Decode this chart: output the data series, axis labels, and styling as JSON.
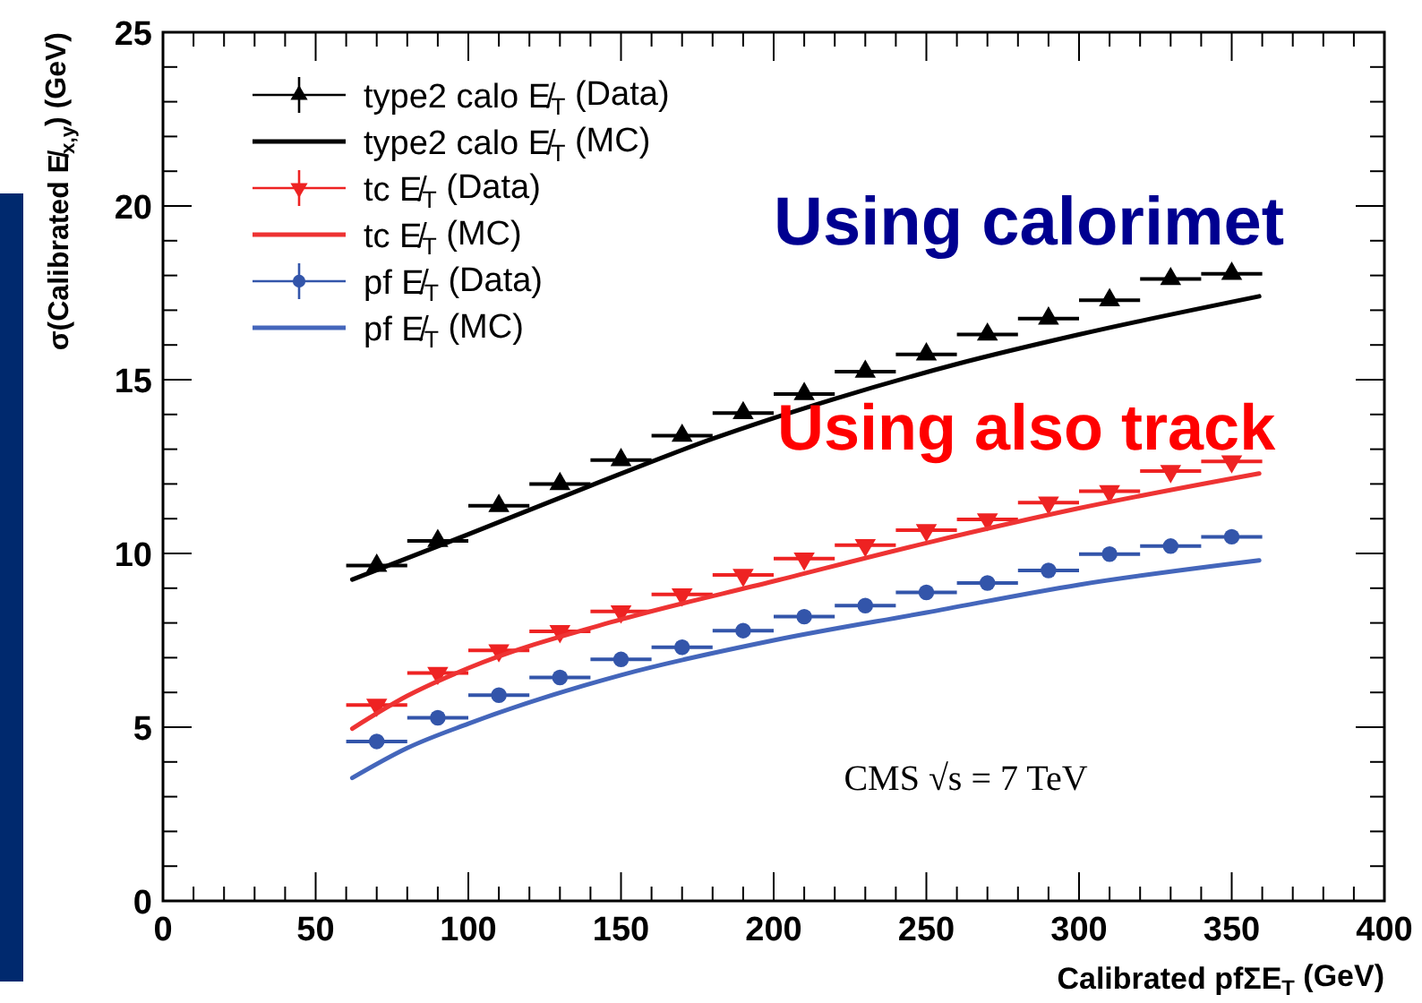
{
  "chart_data": {
    "type": "scatter",
    "xlabel": "Calibrated pfΣE$_{T}$ (GeV)",
    "ylabel": "σ(Calibrated E̸$_{x,y}$) (GeV)",
    "xlim": [
      0,
      400
    ],
    "ylim": [
      0,
      25
    ],
    "xticks": [
      0,
      {
        "value": 10,
        "label": null
      },
      {
        "value": 20,
        "label": null
      },
      {
        "value": 30,
        "label": null
      },
      {
        "value": 40,
        "label": null
      },
      50,
      {
        "value": 60,
        "label": null
      },
      {
        "value": 70,
        "label": null
      },
      {
        "value": 80,
        "label": null
      },
      {
        "value": 90,
        "label": null
      },
      100,
      {
        "value": 110,
        "label": null
      },
      {
        "value": 120,
        "label": null
      },
      {
        "value": 130,
        "label": null
      },
      {
        "value": 140,
        "label": null
      },
      150,
      {
        "value": 160,
        "label": null
      },
      {
        "value": 170,
        "label": null
      },
      {
        "value": 180,
        "label": null
      },
      {
        "value": 190,
        "label": null
      },
      200,
      {
        "value": 210,
        "label": null
      },
      {
        "value": 220,
        "label": null
      },
      {
        "value": 230,
        "label": null
      },
      {
        "value": 240,
        "label": null
      },
      250,
      {
        "value": 260,
        "label": null
      },
      {
        "value": 270,
        "label": null
      },
      {
        "value": 280,
        "label": null
      },
      {
        "value": 290,
        "label": null
      },
      300,
      {
        "value": 310,
        "label": null
      },
      {
        "value": 320,
        "label": null
      },
      {
        "value": 330,
        "label": null
      },
      {
        "value": 340,
        "label": null
      },
      350,
      {
        "value": 360,
        "label": null
      },
      {
        "value": 370,
        "label": null
      },
      {
        "value": 380,
        "label": null
      },
      {
        "value": 390,
        "label": null
      },
      400
    ],
    "yticks": [
      0,
      {
        "value": 1,
        "label": null
      },
      {
        "value": 2,
        "label": null
      },
      {
        "value": 3,
        "label": null
      },
      {
        "value": 4,
        "label": null
      },
      5,
      {
        "value": 6,
        "label": null
      },
      {
        "value": 7,
        "label": null
      },
      {
        "value": 8,
        "label": null
      },
      {
        "value": 9,
        "label": null
      },
      10,
      {
        "value": 11,
        "label": null
      },
      {
        "value": 12,
        "label": null
      },
      {
        "value": 13,
        "label": null
      },
      {
        "value": 14,
        "label": null
      },
      15,
      {
        "value": 16,
        "label": null
      },
      {
        "value": 17,
        "label": null
      },
      {
        "value": 18,
        "label": null
      },
      {
        "value": 19,
        "label": null
      },
      20,
      {
        "value": 21,
        "label": null
      },
      {
        "value": 22,
        "label": null
      },
      {
        "value": 23,
        "label": null
      },
      {
        "value": 24,
        "label": null
      },
      25
    ],
    "legend": "top left",
    "grid": false,
    "x": [
      70,
      90,
      110,
      130,
      150,
      170,
      190,
      210,
      230,
      250,
      270,
      290,
      310,
      330,
      350
    ],
    "series": [
      {
        "name": "type2 calo E̸$_{T}$ (Data)",
        "marker": "triangle",
        "color": "#000000",
        "values": [
          9.65,
          10.36,
          11.37,
          12.0,
          12.69,
          13.39,
          14.04,
          14.59,
          15.23,
          15.73,
          16.3,
          16.76,
          17.29,
          17.9,
          18.05
        ],
        "xerrors": [
          10,
          10,
          10,
          10,
          10,
          10,
          10,
          10,
          10,
          10,
          10,
          10,
          10,
          10,
          10
        ]
      },
      {
        "name": "type2 calo E̸$_{T}$ (MC)",
        "type": "line",
        "marker": "none",
        "color": "#000000",
        "x": [
          62,
          100,
          140,
          180,
          220,
          260,
          300,
          359
        ],
        "values": [
          9.25,
          10.55,
          11.95,
          13.3,
          14.45,
          15.45,
          16.3,
          17.4
        ]
      },
      {
        "name": "tc E̸$_{T}$ (Data)",
        "marker": "triangle-down",
        "color": "#ee2222",
        "values": [
          5.64,
          6.56,
          7.21,
          7.76,
          8.33,
          8.82,
          9.38,
          9.85,
          10.24,
          10.67,
          10.98,
          11.46,
          11.79,
          12.37,
          12.65
        ],
        "xerrors": [
          10,
          10,
          10,
          10,
          10,
          10,
          10,
          10,
          10,
          10,
          10,
          10,
          10,
          10,
          10
        ]
      },
      {
        "name": "tc E̸$_{T}$ (MC)",
        "type": "line",
        "marker": "none",
        "color": "#ee3333",
        "x": [
          62,
          80,
          100,
          150,
          200,
          250,
          300,
          359
        ],
        "values": [
          4.96,
          5.9,
          6.7,
          8.1,
          9.2,
          10.3,
          11.3,
          12.3
        ]
      },
      {
        "name": "pf E̸$_{T}$ (Data)",
        "marker": "circle",
        "color": "#3355aa",
        "values": [
          4.59,
          5.27,
          5.92,
          6.43,
          6.95,
          7.3,
          7.78,
          8.18,
          8.5,
          8.88,
          9.15,
          9.51,
          9.98,
          10.21,
          10.48
        ],
        "xerrors": [
          10,
          10,
          10,
          10,
          10,
          10,
          10,
          10,
          10,
          10,
          10,
          10,
          10,
          10,
          10
        ]
      },
      {
        "name": "pf E̸$_{T}$ (MC)",
        "type": "line",
        "marker": "none",
        "color": "#4466bb",
        "x": [
          62,
          80,
          100,
          150,
          200,
          250,
          300,
          359
        ],
        "values": [
          3.54,
          4.4,
          5.1,
          6.5,
          7.5,
          8.3,
          9.1,
          9.8
        ]
      }
    ],
    "annotations": [
      "CMS √s = 7 TeV",
      "Using calorimet",
      "Using also track"
    ]
  }
}
